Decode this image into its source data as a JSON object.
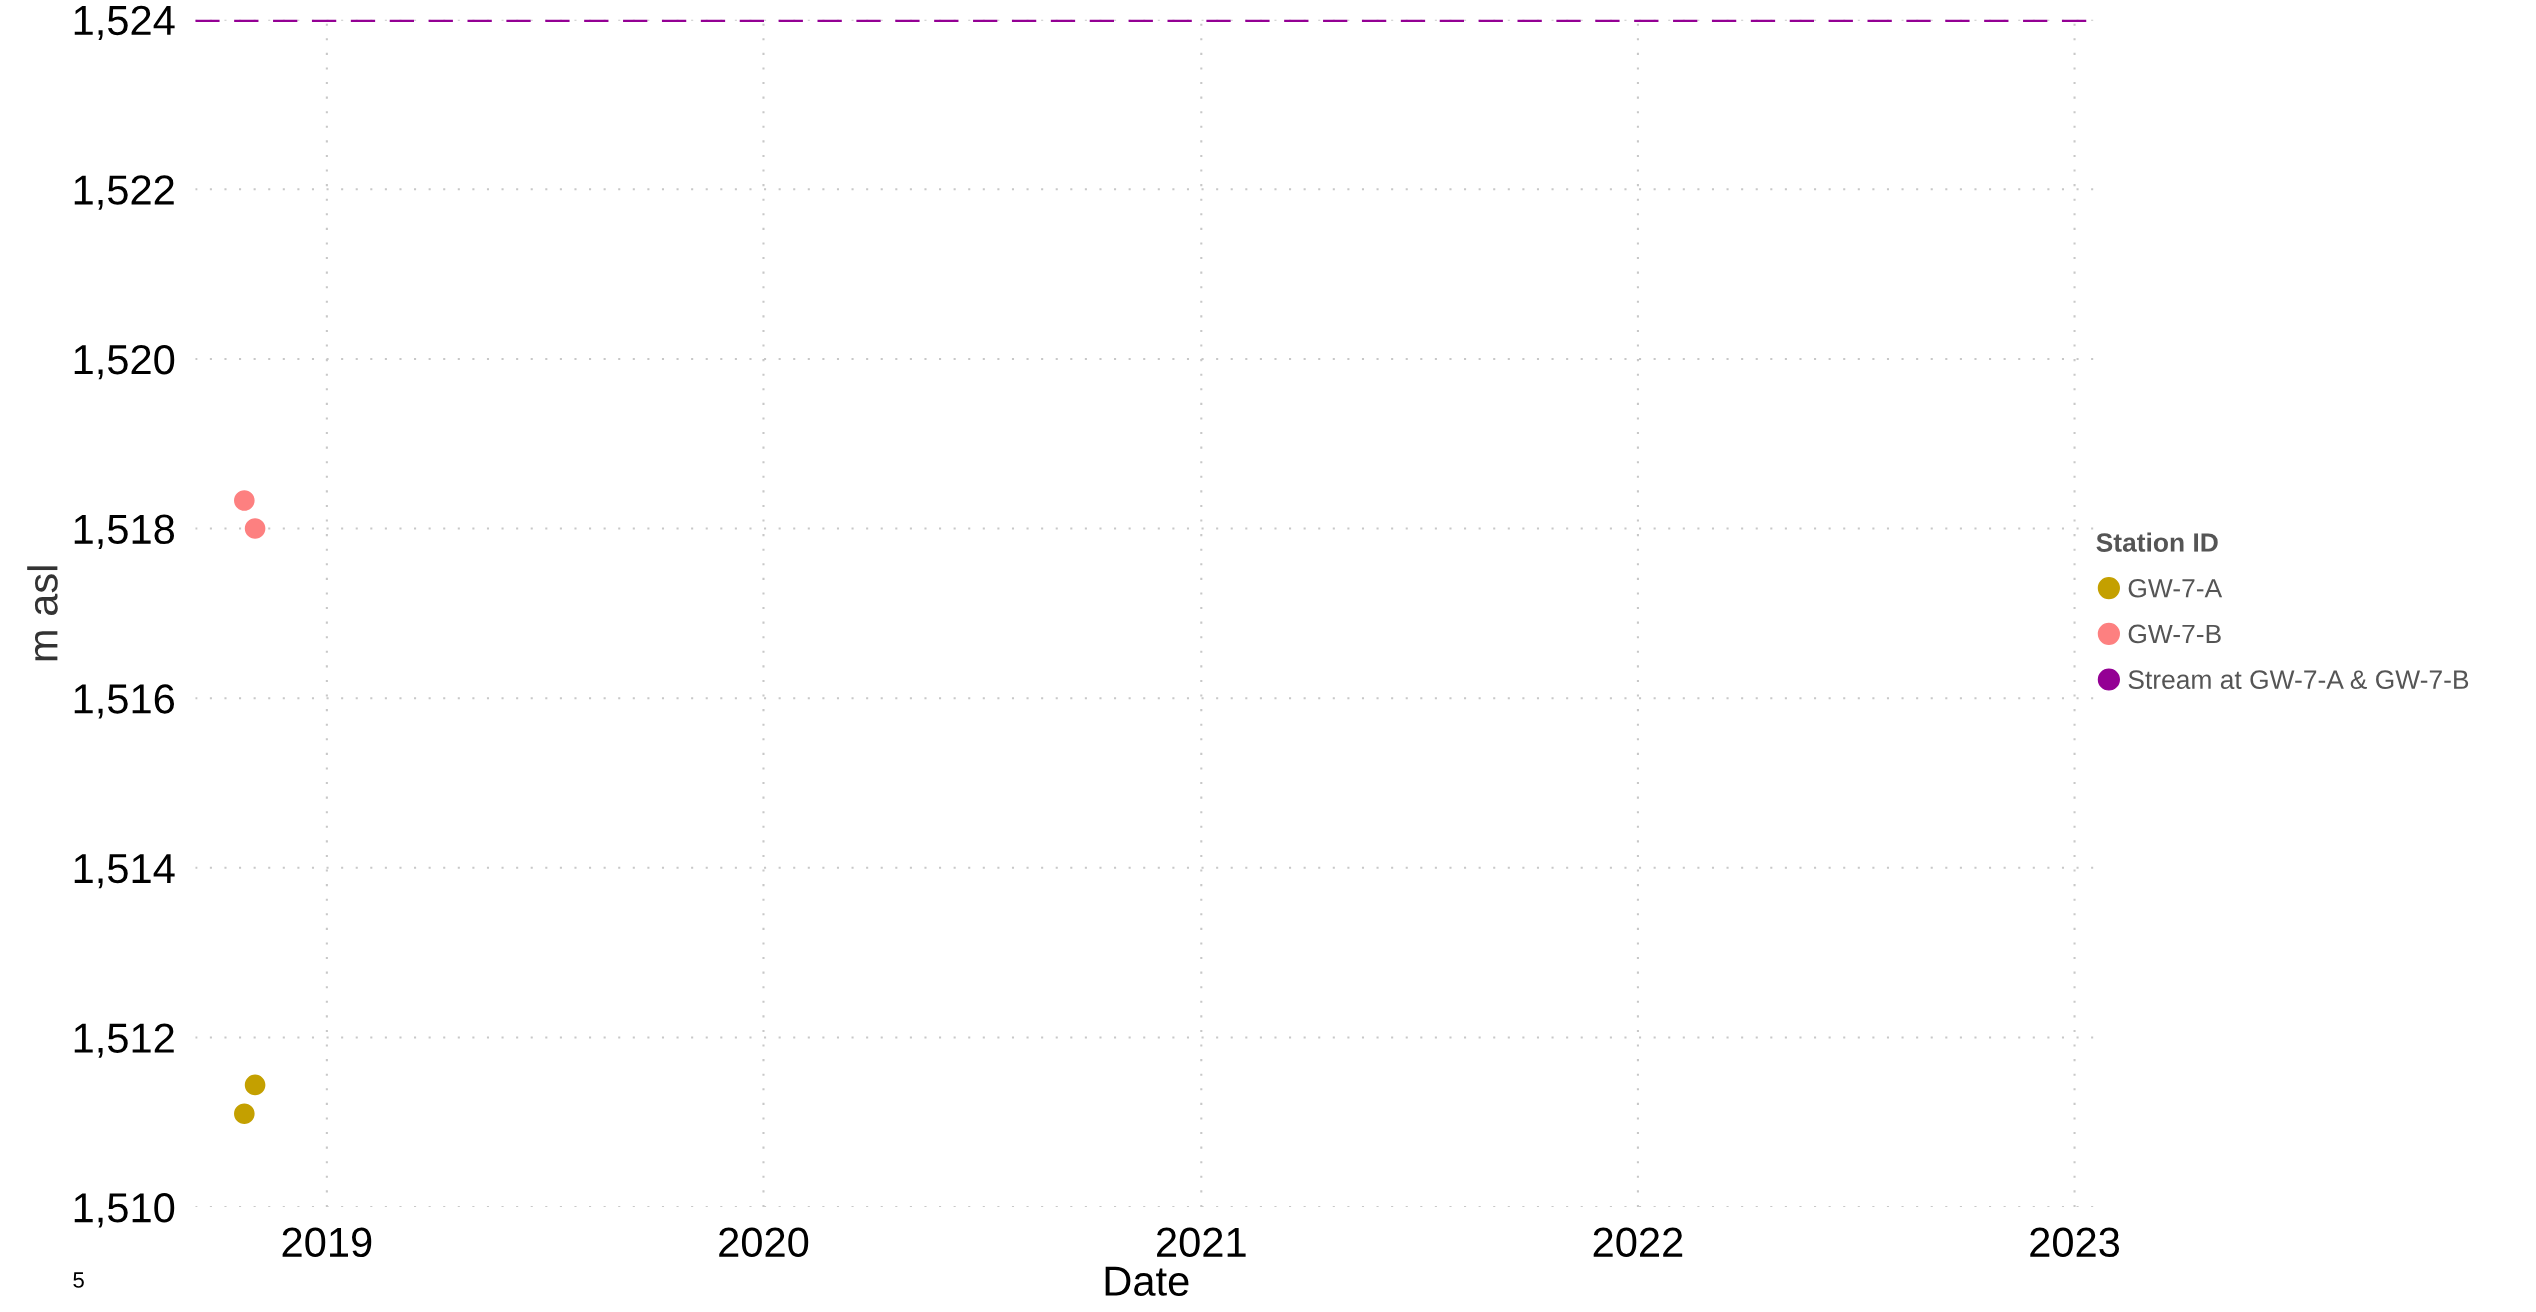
{
  "chart_data": {
    "type": "scatter",
    "xlabel": "Date",
    "ylabel": "m asl",
    "legend_title": "Station ID",
    "legend": "right",
    "grid": true,
    "marker": "circle",
    "xlim": [
      "2018-09-13",
      "2023-01-20"
    ],
    "xticks": [
      {
        "value": "2019-01-01",
        "label": "2019"
      },
      {
        "value": "2020-01-01",
        "label": "2020"
      },
      {
        "value": "2021-01-01",
        "label": "2021"
      },
      {
        "value": "2022-01-01",
        "label": "2022"
      },
      {
        "value": "2023-01-01",
        "label": "2023"
      }
    ],
    "ylim": [
      1510,
      1524
    ],
    "yticks": [
      {
        "value": 1510,
        "label": "1,510"
      },
      {
        "value": 1512,
        "label": "1,512"
      },
      {
        "value": 1514,
        "label": "1,514"
      },
      {
        "value": 1516,
        "label": "1,516"
      },
      {
        "value": 1518,
        "label": "1,518"
      },
      {
        "value": 1520,
        "label": "1,520"
      },
      {
        "value": 1522,
        "label": "1,522"
      },
      {
        "value": 1524,
        "label": "1,524"
      }
    ],
    "series": [
      {
        "name": "GW-7-A",
        "color": "#c4a000",
        "x": [
          "2018-10-24",
          "2018-11-02"
        ],
        "values": [
          1511.1,
          1511.44
        ]
      },
      {
        "name": "GW-7-B",
        "color": "#fd8080",
        "x": [
          "2018-10-24",
          "2018-11-02"
        ],
        "values": [
          1518.33,
          1518.0
        ]
      },
      {
        "name": "Stream at GW-7-A & GW-7-B",
        "color": "#940094",
        "type": "line",
        "line_style": "dashed",
        "marker": "none",
        "x": [
          "2018-09-13",
          "2023-01-17"
        ],
        "values": [
          1524,
          1524
        ]
      }
    ],
    "annotations": [
      "5"
    ]
  }
}
